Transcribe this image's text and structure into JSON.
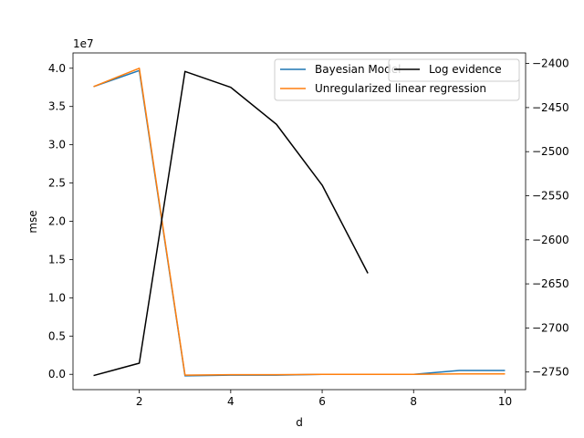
{
  "chart_data": {
    "type": "line",
    "xlabel": "d",
    "ylabel_left": "mse",
    "ylabel_right": "",
    "left_offset_text": "1e7",
    "x_ticks": [
      2,
      4,
      6,
      8,
      10
    ],
    "y_left_ticks": [
      0.0,
      0.5,
      1.0,
      1.5,
      2.0,
      2.5,
      3.0,
      3.5,
      4.0
    ],
    "y_left_tick_labels": [
      "0.0",
      "0.5",
      "1.0",
      "1.5",
      "2.0",
      "2.5",
      "3.0",
      "3.5",
      "4.0"
    ],
    "y_right_ticks": [
      -2750,
      -2700,
      -2650,
      -2600,
      -2550,
      -2500,
      -2450,
      -2400
    ],
    "y_right_tick_labels": [
      "−2750",
      "−2700",
      "−2650",
      "−2600",
      "−2550",
      "−2500",
      "−2450",
      "−2400"
    ],
    "xlim": [
      0.55,
      10.45
    ],
    "ylim_left": [
      -0.2,
      4.2
    ],
    "ylim_right": [
      -2770,
      -2388
    ],
    "series_left": [
      {
        "name": "Bayesian Model",
        "color": "#1f77b4",
        "x": [
          1,
          2,
          3,
          4,
          5,
          6,
          7,
          8,
          9,
          10
        ],
        "y": [
          3.76,
          3.97,
          -0.02,
          -0.01,
          -0.01,
          0.0,
          0.0,
          0.0,
          0.05,
          0.05
        ]
      },
      {
        "name": "Unregularized linear regression",
        "color": "#ff7f0e",
        "x": [
          1,
          2,
          3,
          4,
          5,
          6,
          7,
          8,
          9,
          10
        ],
        "y": [
          3.76,
          4.0,
          -0.01,
          -0.005,
          -0.005,
          0.0,
          0.0,
          0.0,
          0.005,
          0.005
        ]
      }
    ],
    "series_right": [
      {
        "name": "Log evidence",
        "color": "#000000",
        "x": [
          1,
          2,
          3,
          4,
          5,
          6,
          7
        ],
        "y": [
          -2754,
          -2740,
          -2409,
          -2427,
          -2469,
          -2538,
          -2638
        ]
      }
    ],
    "legend_left_placement": "top-right",
    "legend_right_placement": "top-right",
    "grid": false
  }
}
